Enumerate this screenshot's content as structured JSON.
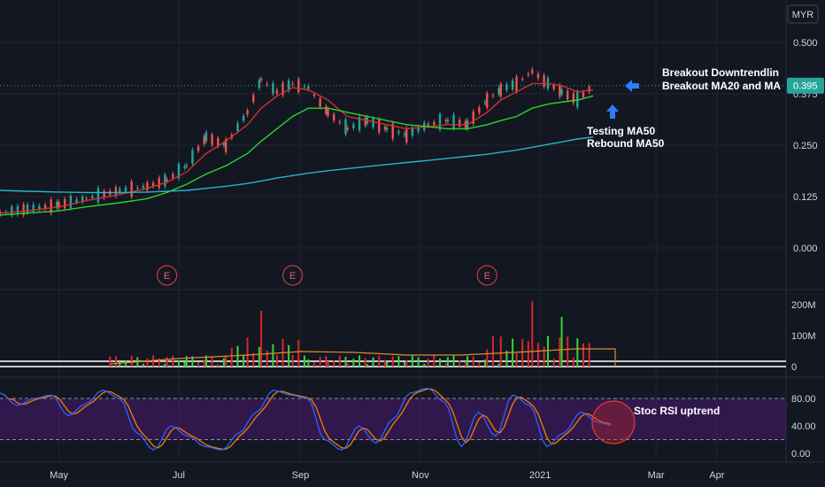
{
  "currency_button": "MYR",
  "price_label": {
    "value": "0.395",
    "color": "#26a69a"
  },
  "colors": {
    "up": "#26a69a",
    "down": "#ef5350",
    "ma20": "#d32f2f",
    "ma50": "#2bd42b",
    "ma200": "#26b6c6",
    "stoch_k": "#2962ff",
    "stoch_d": "#f57c00",
    "vol_up": "#33d533",
    "vol_down": "#d62728",
    "vol_ma": "#e08a2e",
    "rsi_band": "#6a1b9a"
  },
  "earnings_marker": "E",
  "annotations": {
    "breakout_line1": "Breakout Downtrendlin",
    "breakout_line2": "Breakout MA20 and MA",
    "testing_line1": "Testing MA50",
    "testing_line2": "Rebound MA50",
    "stoch_label": "Stoc RSI uptrend"
  },
  "chart_data": [
    {
      "type": "candlestick",
      "title": "",
      "x_axis": {
        "ticks": [
          "May",
          "Jul",
          "Sep",
          "Nov",
          "2021",
          "Mar",
          "Apr"
        ]
      },
      "y_axis": {
        "ticks": [
          "0.500",
          "0.375",
          "0.250",
          "0.125",
          "0.000"
        ],
        "range": [
          -0.02,
          0.52
        ]
      },
      "close_series": {
        "dates": [
          "2020-04-01",
          "2020-04-15",
          "2020-05-01",
          "2020-05-15",
          "2020-06-01",
          "2020-06-15",
          "2020-06-25",
          "2020-07-05",
          "2020-07-15",
          "2020-07-25",
          "2020-08-05",
          "2020-08-12",
          "2020-08-20",
          "2020-08-28",
          "2020-09-05",
          "2020-09-15",
          "2020-09-25",
          "2020-10-05",
          "2020-10-15",
          "2020-10-25",
          "2020-11-05",
          "2020-11-15",
          "2020-11-25",
          "2020-12-05",
          "2020-12-12",
          "2020-12-20",
          "2020-12-28",
          "2021-01-05",
          "2021-01-12",
          "2021-01-20",
          "2021-01-28"
        ],
        "close": [
          0.085,
          0.095,
          0.105,
          0.12,
          0.14,
          0.15,
          0.165,
          0.2,
          0.27,
          0.25,
          0.33,
          0.41,
          0.38,
          0.4,
          0.39,
          0.33,
          0.29,
          0.31,
          0.29,
          0.275,
          0.3,
          0.31,
          0.3,
          0.36,
          0.385,
          0.4,
          0.43,
          0.4,
          0.38,
          0.36,
          0.395
        ]
      },
      "moving_averages": [
        {
          "period": 20,
          "values": [
            0.085,
            0.09,
            0.1,
            0.115,
            0.13,
            0.145,
            0.16,
            0.185,
            0.23,
            0.26,
            0.3,
            0.34,
            0.37,
            0.39,
            0.385,
            0.36,
            0.32,
            0.31,
            0.3,
            0.29,
            0.295,
            0.3,
            0.3,
            0.33,
            0.36,
            0.38,
            0.4,
            0.4,
            0.395,
            0.38,
            0.385
          ]
        },
        {
          "period": 50,
          "values": [
            0.08,
            0.085,
            0.09,
            0.1,
            0.11,
            0.12,
            0.135,
            0.155,
            0.18,
            0.2,
            0.23,
            0.26,
            0.29,
            0.32,
            0.34,
            0.34,
            0.33,
            0.32,
            0.31,
            0.3,
            0.295,
            0.29,
            0.29,
            0.3,
            0.31,
            0.32,
            0.34,
            0.35,
            0.355,
            0.36,
            0.37
          ]
        },
        {
          "period": 200,
          "values": [
            0.14,
            0.138,
            0.136,
            0.135,
            0.135,
            0.136,
            0.138,
            0.14,
            0.145,
            0.15,
            0.157,
            0.163,
            0.17,
            0.176,
            0.182,
            0.188,
            0.193,
            0.198,
            0.203,
            0.208,
            0.213,
            0.218,
            0.223,
            0.228,
            0.233,
            0.238,
            0.245,
            0.252,
            0.258,
            0.265,
            0.27
          ]
        }
      ]
    },
    {
      "type": "bar",
      "title": "",
      "y_axis": {
        "ticks": [
          "200M",
          "100M",
          "0"
        ],
        "range": [
          0,
          220
        ]
      },
      "notable_volumes_millions": [
        {
          "date": "2020-08-01",
          "value": 165
        },
        {
          "date": "2020-08-12",
          "value": 180
        },
        {
          "date": "2020-12-10",
          "value": 170
        },
        {
          "date": "2020-12-28",
          "value": 210
        },
        {
          "date": "2021-01-06",
          "value": 200
        },
        {
          "date": "2021-01-12",
          "value": 160
        }
      ]
    },
    {
      "type": "line",
      "title": "",
      "y_axis": {
        "ticks": [
          "80.00",
          "40.00",
          "0.00"
        ],
        "range": [
          -5,
          110
        ]
      },
      "band": [
        20,
        80
      ],
      "k_values": [
        88,
        70,
        80,
        85,
        55,
        72,
        92,
        80,
        30,
        5,
        40,
        25,
        10,
        5,
        30,
        60,
        92,
        85,
        80,
        20,
        5,
        40,
        15,
        50,
        88,
        95,
        75,
        10,
        60,
        25,
        85,
        70,
        10,
        30,
        60,
        45,
        40
      ]
    }
  ]
}
